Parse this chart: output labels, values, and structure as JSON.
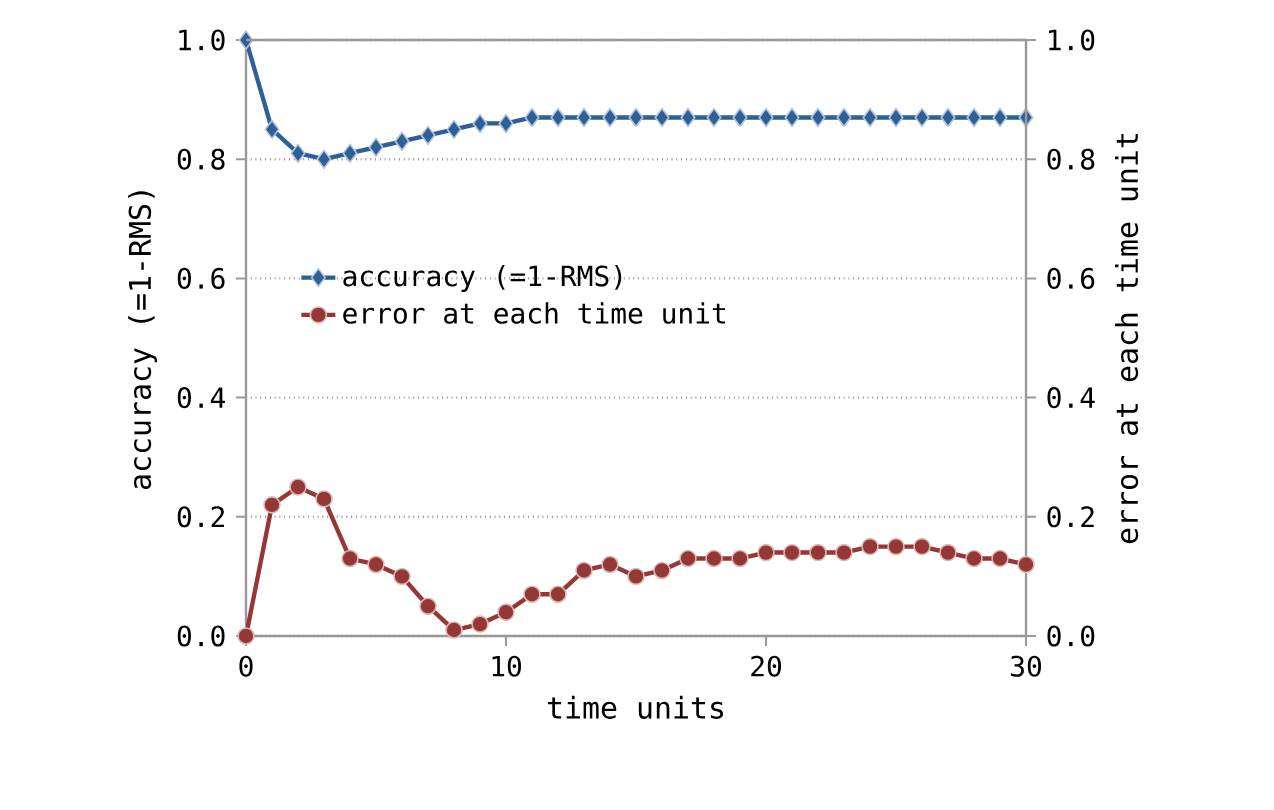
{
  "chart_data": {
    "type": "line",
    "xlabel": "time units",
    "ylabel": "accuracy (=1-RMS)",
    "y2label": "error at each time unit",
    "x": [
      0,
      1,
      2,
      3,
      4,
      5,
      6,
      7,
      8,
      9,
      10,
      11,
      12,
      13,
      14,
      15,
      16,
      17,
      18,
      19,
      20,
      21,
      22,
      23,
      24,
      25,
      26,
      27,
      28,
      29,
      30
    ],
    "series": [
      {
        "name": "accuracy (=1-RMS)",
        "color": "#2f5f98",
        "marker": "diamond",
        "values": [
          1.0,
          0.85,
          0.81,
          0.8,
          0.81,
          0.82,
          0.83,
          0.84,
          0.85,
          0.86,
          0.86,
          0.87,
          0.87,
          0.87,
          0.87,
          0.87,
          0.87,
          0.87,
          0.87,
          0.87,
          0.87,
          0.87,
          0.87,
          0.87,
          0.87,
          0.87,
          0.87,
          0.87,
          0.87,
          0.87,
          0.87
        ]
      },
      {
        "name": "error at each time unit",
        "color": "#953735",
        "marker": "circle",
        "axis": "y2",
        "values": [
          0.0,
          0.22,
          0.25,
          0.23,
          0.13,
          0.12,
          0.1,
          0.05,
          0.01,
          0.02,
          0.04,
          0.07,
          0.07,
          0.11,
          0.12,
          0.1,
          0.11,
          0.13,
          0.13,
          0.13,
          0.14,
          0.14,
          0.14,
          0.14,
          0.15,
          0.15,
          0.15,
          0.14,
          0.13,
          0.13,
          0.12
        ]
      }
    ],
    "xlim": [
      0,
      30
    ],
    "xticks": [
      0,
      10,
      20,
      30
    ],
    "ylim": [
      0,
      1
    ],
    "yticks": [
      {
        "value": 0,
        "label": "0.0"
      },
      {
        "value": 0.2,
        "label": "0.2"
      },
      {
        "value": 0.4,
        "label": "0.4"
      },
      {
        "value": 0.6,
        "label": "0.6"
      },
      {
        "value": 0.8,
        "label": "0.8"
      },
      {
        "value": 1,
        "label": "1.0"
      }
    ],
    "y2lim": [
      0,
      1
    ],
    "y2ticks": [
      {
        "value": 0,
        "label": "0.0"
      },
      {
        "value": 0.2,
        "label": "0.2"
      },
      {
        "value": 0.4,
        "label": "0.4"
      },
      {
        "value": 0.6,
        "label": "0.6"
      },
      {
        "value": 0.8,
        "label": "0.8"
      },
      {
        "value": 1,
        "label": "1.0"
      }
    ],
    "grid": "y",
    "legend": "left",
    "line_style": "solid"
  }
}
